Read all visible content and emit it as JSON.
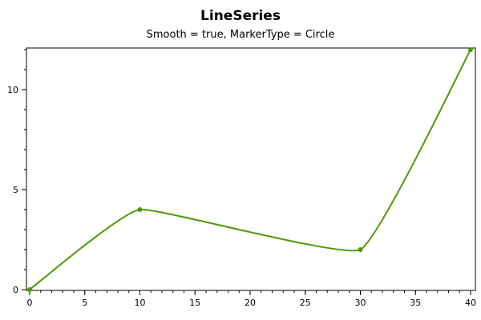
{
  "chart_data": {
    "type": "line",
    "title": "LineSeries",
    "subtitle": "Smooth = true, MarkerType = Circle",
    "xlabel": "",
    "ylabel": "",
    "xlim": [
      0,
      40
    ],
    "ylim": [
      0,
      12
    ],
    "x_ticks": [
      0,
      5,
      10,
      15,
      20,
      25,
      30,
      35,
      40
    ],
    "y_ticks": [
      0,
      5,
      10
    ],
    "x_minor_step": 1,
    "y_minor_step": 1,
    "grid": false,
    "smooth": true,
    "marker": "circle",
    "series": [
      {
        "x": [
          0,
          10,
          30,
          40
        ],
        "values": [
          0,
          4,
          2,
          12
        ],
        "color": "#4e9a06"
      }
    ]
  }
}
